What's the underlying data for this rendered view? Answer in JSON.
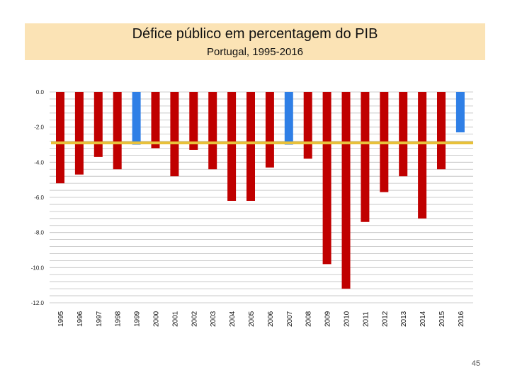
{
  "slide": {
    "title": "Défice público em percentagem do PIB",
    "subtitle": "Portugal, 1995-2016",
    "page_number": "45"
  },
  "colors": {
    "deficit_bar": "#c00000",
    "highlight_bar": "#2f7fe6",
    "reference_line": "#e8c13a",
    "gridline": "#bdbdbd",
    "title_background": "#fbe3b5"
  },
  "chart_data": {
    "type": "bar",
    "title": "Défice público em percentagem do PIB",
    "subtitle": "Portugal, 1995-2016",
    "categories": [
      "1995",
      "1996",
      "1997",
      "1998",
      "1999",
      "2000",
      "2001",
      "2002",
      "2003",
      "2004",
      "2005",
      "2006",
      "2007",
      "2008",
      "2009",
      "2010",
      "2011",
      "2012",
      "2013",
      "2014",
      "2015",
      "2016"
    ],
    "values": [
      -5.2,
      -4.7,
      -3.7,
      -4.4,
      -3.0,
      -3.2,
      -4.8,
      -3.3,
      -4.4,
      -6.2,
      -6.2,
      -4.3,
      -3.0,
      -3.8,
      -9.8,
      -11.2,
      -7.4,
      -5.7,
      -4.8,
      -7.2,
      -4.4,
      -2.3
    ],
    "highlighted_categories": [
      "1999",
      "2007",
      "2016"
    ],
    "reference_line_value": -2.9,
    "ylim": [
      -12.0,
      0.0
    ],
    "yticks": [
      0.0,
      -2.0,
      -4.0,
      -6.0,
      -8.0,
      -10.0,
      -12.0
    ],
    "ytick_labels": [
      "0.0",
      "-2.0",
      "-4.0",
      "-6.0",
      "-8.0",
      "-10.0",
      "-12.0"
    ],
    "minor_grid_step": 0.4,
    "grid": true,
    "xlabel": "",
    "ylabel": ""
  }
}
